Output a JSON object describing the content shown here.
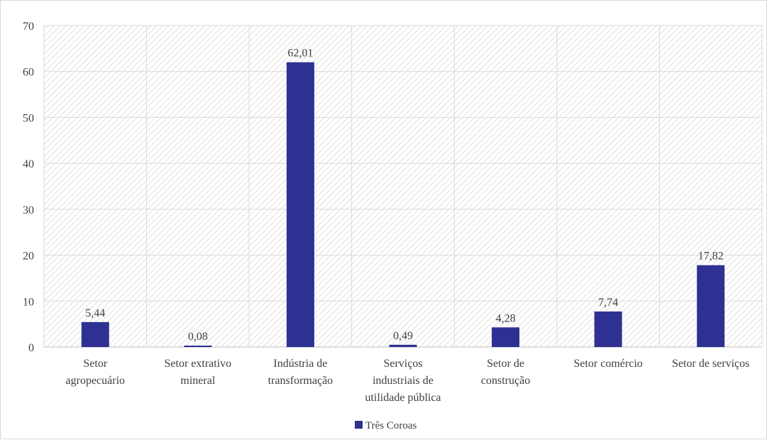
{
  "chart_data": {
    "type": "bar",
    "categories": [
      [
        "Setor",
        "agropecuário"
      ],
      [
        "Setor extrativo",
        "mineral"
      ],
      [
        "Indústria de",
        "transformação"
      ],
      [
        "Serviços",
        "industriais de",
        "utilidade pública"
      ],
      [
        "Setor de",
        "construção"
      ],
      [
        "Setor comércio"
      ],
      [
        "Setor de serviços"
      ]
    ],
    "series": [
      {
        "name": "Três Coroas",
        "values": [
          5.44,
          0.08,
          62.01,
          0.49,
          4.28,
          7.74,
          17.82
        ],
        "labels": [
          "5,44",
          "0,08",
          "62,01",
          "0,49",
          "4,28",
          "7,74",
          "17,82"
        ]
      }
    ],
    "ylim": [
      0,
      70
    ],
    "yticks": [
      0,
      10,
      20,
      30,
      40,
      50,
      60,
      70
    ],
    "grid": true,
    "legend_position": "bottom",
    "bar_color": "#2e3192",
    "plot_background": "hatched light gray"
  }
}
